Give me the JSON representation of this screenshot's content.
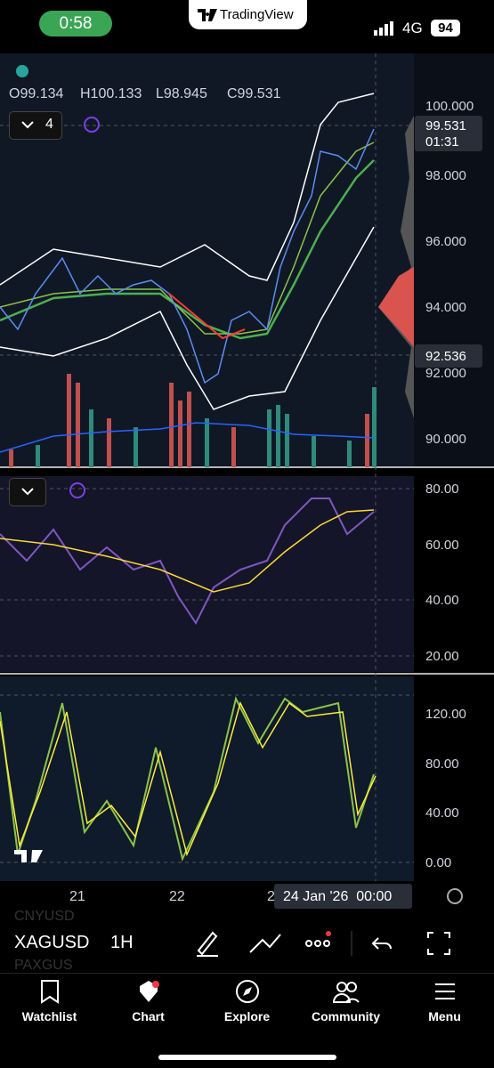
{
  "status_bar": {
    "time": "0:58",
    "app": "TradingView",
    "network": "4G",
    "battery": "94"
  },
  "legend": {
    "open": "O99.134",
    "high": "H100.133",
    "low": "L98.945",
    "close": "C99.531",
    "indicator_count": "4"
  },
  "price_axis": {
    "ticks": [
      "100.000",
      "98.000",
      "96.000",
      "94.000",
      "92.000",
      "90.000"
    ],
    "last_price": "99.531",
    "countdown": "01:31",
    "marker": "92.536"
  },
  "rsi_axis": {
    "ticks": [
      "80.00",
      "60.00",
      "40.00",
      "20.00"
    ]
  },
  "stoch_axis": {
    "ticks": [
      "120.00",
      "80.00",
      "40.00",
      "0.00"
    ]
  },
  "time_axis": {
    "labels": [
      "21",
      "22",
      "2"
    ],
    "crosshair": "24 Jan '26  00:00"
  },
  "toolbar": {
    "symbol": "XAGUSD",
    "interval": "1H",
    "watch_above": "CNYUSD",
    "watch_below": "PAXGUS"
  },
  "nav": [
    "Watchlist",
    "Chart",
    "Explore",
    "Community",
    "Menu"
  ]
}
